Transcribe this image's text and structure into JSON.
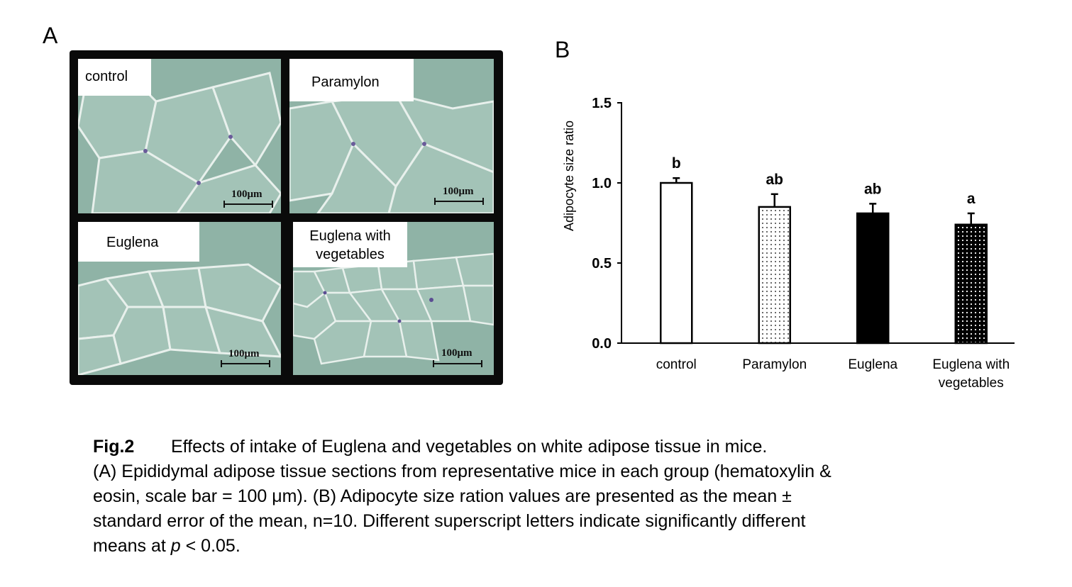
{
  "panel_a": {
    "letter": "A",
    "images": [
      {
        "label": "control",
        "scale": "100μm"
      },
      {
        "label": "Paramylon",
        "scale": "100μm"
      },
      {
        "label": "Euglena",
        "scale": "100μm"
      },
      {
        "label_line1": "Euglena with",
        "label_line2": "vegetables",
        "scale": "100μm"
      }
    ]
  },
  "panel_b": {
    "letter": "B"
  },
  "chart_data": {
    "type": "bar",
    "title": "",
    "ylabel": "Adipocyte size ratio",
    "xlabel": "",
    "ylim": [
      0.0,
      1.5
    ],
    "yticks": [
      "0.0",
      "0.5",
      "1.0",
      "1.5"
    ],
    "categories": [
      "control",
      "Paramylon",
      "Euglena",
      "Euglena with vegetables"
    ],
    "category_lines": [
      [
        "control"
      ],
      [
        "Paramylon"
      ],
      [
        "Euglena"
      ],
      [
        "Euglena with",
        "vegetables"
      ]
    ],
    "values": [
      1.0,
      0.85,
      0.81,
      0.74
    ],
    "errors": [
      0.03,
      0.08,
      0.06,
      0.07
    ],
    "significance": [
      "b",
      "ab",
      "ab",
      "a"
    ],
    "fills": [
      "white",
      "sparse-dots",
      "black",
      "dense-dots"
    ],
    "grid": false,
    "legend": "none"
  },
  "caption": {
    "fig_label": "Fig.2",
    "title": "Effects of intake of Euglena and vegetables on white adipose tissue in mice.",
    "line1": "(A) Epididymal adipose tissue sections from representative mice in each group (hematoxylin &",
    "line2": "eosin, scale bar = 100 μm). (B) Adipocyte size ration values are presented as the mean ±",
    "line3": "standard error of the mean, n=10. Different superscript letters indicate significantly different",
    "line4_pre": "means at ",
    "line4_p": "p",
    "line4_post": " < 0.05."
  }
}
